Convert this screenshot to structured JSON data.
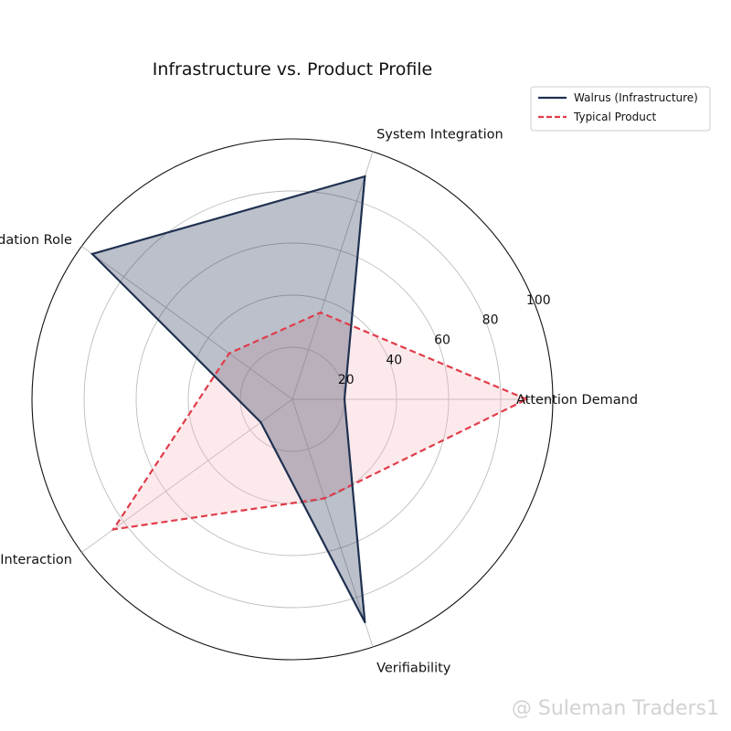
{
  "chart_data": {
    "type": "radar",
    "title": "Infrastructure vs. Product Profile",
    "categories": [
      "Attention Demand",
      "System Integration",
      "Foundation Role",
      "User Interaction",
      "Verifiability"
    ],
    "rlim": [
      0,
      100
    ],
    "ticks": [
      20,
      40,
      60,
      80,
      100
    ],
    "tick_labels": [
      "20",
      "40",
      "60",
      "80",
      "100"
    ],
    "grid": true,
    "legend_position": "top-right",
    "series": [
      {
        "name": "Walrus (Infrastructure)",
        "values": [
          20,
          90,
          95,
          15,
          90
        ],
        "color": "#1f3050",
        "fill": "#1f3050",
        "fill_opacity": 0.3,
        "line_style": "solid"
      },
      {
        "name": "Typical Product",
        "values": [
          90,
          35,
          30,
          85,
          40
        ],
        "color": "#e03c4a",
        "fill": "#f4b6bd",
        "fill_opacity": 0.3,
        "line_style": "dashed"
      }
    ]
  },
  "watermark": "@ Suleman Traders1"
}
